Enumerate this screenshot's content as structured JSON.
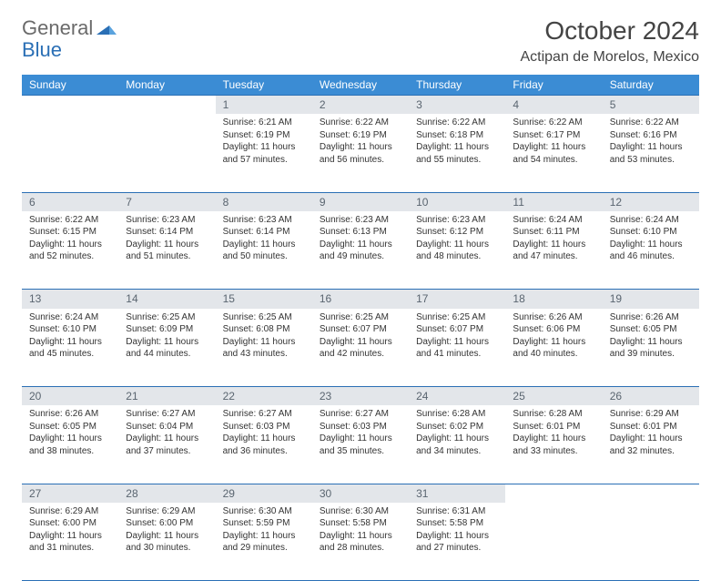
{
  "logo": {
    "text1": "General",
    "text2": "Blue"
  },
  "title": "October 2024",
  "location": "Actipan de Morelos, Mexico",
  "colors": {
    "header_bg": "#3b8cd4",
    "daynum_bg": "#e3e6ea",
    "border": "#2a6fb5",
    "logo_blue": "#2a6fb5",
    "text": "#333333"
  },
  "day_headers": [
    "Sunday",
    "Monday",
    "Tuesday",
    "Wednesday",
    "Thursday",
    "Friday",
    "Saturday"
  ],
  "weeks": [
    {
      "nums": [
        "",
        "",
        "1",
        "2",
        "3",
        "4",
        "5"
      ],
      "cells": [
        null,
        null,
        {
          "sunrise": "Sunrise: 6:21 AM",
          "sunset": "Sunset: 6:19 PM",
          "day1": "Daylight: 11 hours",
          "day2": "and 57 minutes."
        },
        {
          "sunrise": "Sunrise: 6:22 AM",
          "sunset": "Sunset: 6:19 PM",
          "day1": "Daylight: 11 hours",
          "day2": "and 56 minutes."
        },
        {
          "sunrise": "Sunrise: 6:22 AM",
          "sunset": "Sunset: 6:18 PM",
          "day1": "Daylight: 11 hours",
          "day2": "and 55 minutes."
        },
        {
          "sunrise": "Sunrise: 6:22 AM",
          "sunset": "Sunset: 6:17 PM",
          "day1": "Daylight: 11 hours",
          "day2": "and 54 minutes."
        },
        {
          "sunrise": "Sunrise: 6:22 AM",
          "sunset": "Sunset: 6:16 PM",
          "day1": "Daylight: 11 hours",
          "day2": "and 53 minutes."
        }
      ]
    },
    {
      "nums": [
        "6",
        "7",
        "8",
        "9",
        "10",
        "11",
        "12"
      ],
      "cells": [
        {
          "sunrise": "Sunrise: 6:22 AM",
          "sunset": "Sunset: 6:15 PM",
          "day1": "Daylight: 11 hours",
          "day2": "and 52 minutes."
        },
        {
          "sunrise": "Sunrise: 6:23 AM",
          "sunset": "Sunset: 6:14 PM",
          "day1": "Daylight: 11 hours",
          "day2": "and 51 minutes."
        },
        {
          "sunrise": "Sunrise: 6:23 AM",
          "sunset": "Sunset: 6:14 PM",
          "day1": "Daylight: 11 hours",
          "day2": "and 50 minutes."
        },
        {
          "sunrise": "Sunrise: 6:23 AM",
          "sunset": "Sunset: 6:13 PM",
          "day1": "Daylight: 11 hours",
          "day2": "and 49 minutes."
        },
        {
          "sunrise": "Sunrise: 6:23 AM",
          "sunset": "Sunset: 6:12 PM",
          "day1": "Daylight: 11 hours",
          "day2": "and 48 minutes."
        },
        {
          "sunrise": "Sunrise: 6:24 AM",
          "sunset": "Sunset: 6:11 PM",
          "day1": "Daylight: 11 hours",
          "day2": "and 47 minutes."
        },
        {
          "sunrise": "Sunrise: 6:24 AM",
          "sunset": "Sunset: 6:10 PM",
          "day1": "Daylight: 11 hours",
          "day2": "and 46 minutes."
        }
      ]
    },
    {
      "nums": [
        "13",
        "14",
        "15",
        "16",
        "17",
        "18",
        "19"
      ],
      "cells": [
        {
          "sunrise": "Sunrise: 6:24 AM",
          "sunset": "Sunset: 6:10 PM",
          "day1": "Daylight: 11 hours",
          "day2": "and 45 minutes."
        },
        {
          "sunrise": "Sunrise: 6:25 AM",
          "sunset": "Sunset: 6:09 PM",
          "day1": "Daylight: 11 hours",
          "day2": "and 44 minutes."
        },
        {
          "sunrise": "Sunrise: 6:25 AM",
          "sunset": "Sunset: 6:08 PM",
          "day1": "Daylight: 11 hours",
          "day2": "and 43 minutes."
        },
        {
          "sunrise": "Sunrise: 6:25 AM",
          "sunset": "Sunset: 6:07 PM",
          "day1": "Daylight: 11 hours",
          "day2": "and 42 minutes."
        },
        {
          "sunrise": "Sunrise: 6:25 AM",
          "sunset": "Sunset: 6:07 PM",
          "day1": "Daylight: 11 hours",
          "day2": "and 41 minutes."
        },
        {
          "sunrise": "Sunrise: 6:26 AM",
          "sunset": "Sunset: 6:06 PM",
          "day1": "Daylight: 11 hours",
          "day2": "and 40 minutes."
        },
        {
          "sunrise": "Sunrise: 6:26 AM",
          "sunset": "Sunset: 6:05 PM",
          "day1": "Daylight: 11 hours",
          "day2": "and 39 minutes."
        }
      ]
    },
    {
      "nums": [
        "20",
        "21",
        "22",
        "23",
        "24",
        "25",
        "26"
      ],
      "cells": [
        {
          "sunrise": "Sunrise: 6:26 AM",
          "sunset": "Sunset: 6:05 PM",
          "day1": "Daylight: 11 hours",
          "day2": "and 38 minutes."
        },
        {
          "sunrise": "Sunrise: 6:27 AM",
          "sunset": "Sunset: 6:04 PM",
          "day1": "Daylight: 11 hours",
          "day2": "and 37 minutes."
        },
        {
          "sunrise": "Sunrise: 6:27 AM",
          "sunset": "Sunset: 6:03 PM",
          "day1": "Daylight: 11 hours",
          "day2": "and 36 minutes."
        },
        {
          "sunrise": "Sunrise: 6:27 AM",
          "sunset": "Sunset: 6:03 PM",
          "day1": "Daylight: 11 hours",
          "day2": "and 35 minutes."
        },
        {
          "sunrise": "Sunrise: 6:28 AM",
          "sunset": "Sunset: 6:02 PM",
          "day1": "Daylight: 11 hours",
          "day2": "and 34 minutes."
        },
        {
          "sunrise": "Sunrise: 6:28 AM",
          "sunset": "Sunset: 6:01 PM",
          "day1": "Daylight: 11 hours",
          "day2": "and 33 minutes."
        },
        {
          "sunrise": "Sunrise: 6:29 AM",
          "sunset": "Sunset: 6:01 PM",
          "day1": "Daylight: 11 hours",
          "day2": "and 32 minutes."
        }
      ]
    },
    {
      "nums": [
        "27",
        "28",
        "29",
        "30",
        "31",
        "",
        ""
      ],
      "cells": [
        {
          "sunrise": "Sunrise: 6:29 AM",
          "sunset": "Sunset: 6:00 PM",
          "day1": "Daylight: 11 hours",
          "day2": "and 31 minutes."
        },
        {
          "sunrise": "Sunrise: 6:29 AM",
          "sunset": "Sunset: 6:00 PM",
          "day1": "Daylight: 11 hours",
          "day2": "and 30 minutes."
        },
        {
          "sunrise": "Sunrise: 6:30 AM",
          "sunset": "Sunset: 5:59 PM",
          "day1": "Daylight: 11 hours",
          "day2": "and 29 minutes."
        },
        {
          "sunrise": "Sunrise: 6:30 AM",
          "sunset": "Sunset: 5:58 PM",
          "day1": "Daylight: 11 hours",
          "day2": "and 28 minutes."
        },
        {
          "sunrise": "Sunrise: 6:31 AM",
          "sunset": "Sunset: 5:58 PM",
          "day1": "Daylight: 11 hours",
          "day2": "and 27 minutes."
        },
        null,
        null
      ]
    }
  ]
}
